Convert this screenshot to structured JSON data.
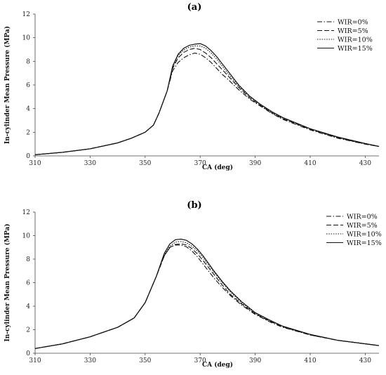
{
  "chart_data": [
    {
      "type": "line",
      "title": "(a)",
      "xlabel": "CA (deg)",
      "ylabel": "In-cylinder Mean Pressure (MPa)",
      "xlim": [
        310,
        435
      ],
      "ylim": [
        0,
        12
      ],
      "xticks": [
        "310",
        "330",
        "350",
        "370",
        "390",
        "410",
        "430"
      ],
      "yticks": [
        "0",
        "2",
        "4",
        "6",
        "8",
        "10",
        "12"
      ],
      "legend_position": "top-right",
      "grid": false,
      "series": [
        {
          "name": "WIR=0%",
          "style": "dashdot",
          "x": [
            310,
            320,
            330,
            340,
            345,
            350,
            353,
            355,
            358,
            360,
            362,
            364,
            366,
            368,
            370,
            372,
            374,
            376,
            378,
            380,
            384,
            388,
            392,
            396,
            400,
            410,
            420,
            430,
            435
          ],
          "y": [
            0.1,
            0.3,
            0.6,
            1.1,
            1.5,
            2.0,
            2.6,
            3.6,
            5.5,
            7.2,
            7.9,
            8.3,
            8.55,
            8.7,
            8.6,
            8.3,
            7.9,
            7.4,
            6.9,
            6.5,
            5.6,
            4.8,
            4.2,
            3.6,
            3.1,
            2.2,
            1.5,
            1.0,
            0.8
          ]
        },
        {
          "name": "WIR=5%",
          "style": "dashed",
          "x": [
            310,
            320,
            330,
            340,
            345,
            350,
            353,
            355,
            358,
            360,
            362,
            364,
            366,
            368,
            370,
            372,
            374,
            376,
            378,
            380,
            384,
            388,
            392,
            396,
            400,
            410,
            420,
            430,
            435
          ],
          "y": [
            0.1,
            0.3,
            0.6,
            1.1,
            1.5,
            2.0,
            2.6,
            3.6,
            5.5,
            7.4,
            8.3,
            8.75,
            9.0,
            9.1,
            9.0,
            8.7,
            8.3,
            7.8,
            7.3,
            6.8,
            5.8,
            4.9,
            4.25,
            3.65,
            3.15,
            2.25,
            1.55,
            1.0,
            0.8
          ]
        },
        {
          "name": "WIR=10%",
          "style": "dotted",
          "x": [
            310,
            320,
            330,
            340,
            345,
            350,
            353,
            355,
            358,
            360,
            362,
            364,
            366,
            368,
            370,
            372,
            374,
            376,
            378,
            380,
            384,
            388,
            392,
            396,
            400,
            410,
            420,
            430,
            435
          ],
          "y": [
            0.1,
            0.3,
            0.6,
            1.1,
            1.5,
            2.0,
            2.6,
            3.6,
            5.5,
            7.5,
            8.5,
            8.95,
            9.2,
            9.3,
            9.3,
            9.1,
            8.7,
            8.2,
            7.6,
            7.0,
            5.9,
            5.0,
            4.3,
            3.7,
            3.2,
            2.3,
            1.55,
            1.05,
            0.8
          ]
        },
        {
          "name": "WIR=15%",
          "style": "solid",
          "x": [
            310,
            320,
            330,
            340,
            345,
            350,
            353,
            355,
            358,
            360,
            362,
            364,
            366,
            368,
            370,
            372,
            374,
            376,
            378,
            380,
            384,
            388,
            392,
            396,
            400,
            410,
            420,
            430,
            435
          ],
          "y": [
            0.1,
            0.3,
            0.6,
            1.1,
            1.5,
            2.0,
            2.6,
            3.6,
            5.5,
            7.6,
            8.6,
            9.1,
            9.35,
            9.45,
            9.5,
            9.3,
            8.9,
            8.4,
            7.8,
            7.2,
            6.0,
            5.05,
            4.35,
            3.75,
            3.25,
            2.3,
            1.6,
            1.05,
            0.8
          ]
        }
      ]
    },
    {
      "type": "line",
      "title": "(b)",
      "xlabel": "CA (deg)",
      "ylabel": "In-cylinder Mean Pressure (MPa)",
      "xlim": [
        310,
        435
      ],
      "ylim": [
        0,
        12
      ],
      "xticks": [
        "310",
        "330",
        "350",
        "370",
        "390",
        "410",
        "430"
      ],
      "yticks": [
        "0",
        "2",
        "4",
        "6",
        "8",
        "10",
        "12"
      ],
      "legend_position": "top-right",
      "grid": false,
      "series": [
        {
          "name": "WIR=0%",
          "style": "dashdot",
          "x": [
            310,
            320,
            330,
            340,
            346,
            350,
            354,
            357,
            359,
            361,
            363,
            365,
            367,
            369,
            371,
            373,
            375,
            378,
            381,
            385,
            390,
            395,
            400,
            410,
            420,
            430,
            435
          ],
          "y": [
            0.4,
            0.8,
            1.4,
            2.2,
            3.0,
            4.3,
            6.5,
            8.3,
            9.0,
            9.2,
            9.2,
            9.05,
            8.7,
            8.2,
            7.6,
            7.0,
            6.4,
            5.6,
            4.9,
            4.1,
            3.3,
            2.7,
            2.2,
            1.55,
            1.1,
            0.8,
            0.65
          ]
        },
        {
          "name": "WIR=5%",
          "style": "dashed",
          "x": [
            310,
            320,
            330,
            340,
            346,
            350,
            354,
            357,
            359,
            361,
            363,
            365,
            367,
            369,
            371,
            373,
            375,
            378,
            381,
            385,
            390,
            395,
            400,
            410,
            420,
            430,
            435
          ],
          "y": [
            0.4,
            0.8,
            1.4,
            2.2,
            3.0,
            4.3,
            6.5,
            8.3,
            9.0,
            9.25,
            9.3,
            9.2,
            8.9,
            8.45,
            7.9,
            7.3,
            6.7,
            5.8,
            5.0,
            4.2,
            3.35,
            2.75,
            2.25,
            1.55,
            1.1,
            0.8,
            0.65
          ]
        },
        {
          "name": "WIR=10%",
          "style": "dotted",
          "x": [
            310,
            320,
            330,
            340,
            346,
            350,
            354,
            357,
            359,
            361,
            363,
            365,
            367,
            369,
            371,
            373,
            375,
            378,
            381,
            385,
            390,
            395,
            400,
            410,
            420,
            430,
            435
          ],
          "y": [
            0.4,
            0.8,
            1.4,
            2.2,
            3.0,
            4.3,
            6.5,
            8.4,
            9.1,
            9.45,
            9.5,
            9.4,
            9.1,
            8.7,
            8.15,
            7.5,
            6.9,
            6.0,
            5.2,
            4.3,
            3.4,
            2.8,
            2.3,
            1.6,
            1.1,
            0.8,
            0.65
          ]
        },
        {
          "name": "WIR=15%",
          "style": "solid",
          "x": [
            310,
            320,
            330,
            340,
            346,
            350,
            354,
            357,
            359,
            361,
            363,
            365,
            367,
            369,
            371,
            373,
            375,
            378,
            381,
            385,
            390,
            395,
            400,
            410,
            420,
            430,
            435
          ],
          "y": [
            0.4,
            0.8,
            1.4,
            2.2,
            3.0,
            4.3,
            6.5,
            8.5,
            9.3,
            9.65,
            9.7,
            9.6,
            9.3,
            8.85,
            8.3,
            7.65,
            7.0,
            6.1,
            5.3,
            4.4,
            3.45,
            2.85,
            2.3,
            1.6,
            1.1,
            0.8,
            0.65
          ]
        }
      ]
    }
  ]
}
